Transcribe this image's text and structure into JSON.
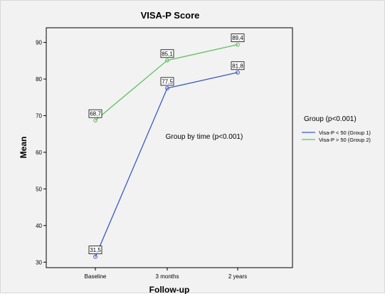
{
  "chart_data": {
    "type": "line",
    "title": "VISA-P Score",
    "xlabel": "Follow-up",
    "ylabel": "Mean",
    "categories": [
      "Baseline",
      "3 months",
      "2 years"
    ],
    "ylim": [
      28.5,
      94
    ],
    "yticks": [
      30,
      40,
      50,
      60,
      70,
      80,
      90
    ],
    "grid": false,
    "series": [
      {
        "name": "Visa-P < 50 (Group 1)",
        "color": "#3a5bc7",
        "values": [
          31.5,
          77.5,
          81.8
        ],
        "labels": [
          "31,5",
          "77,5",
          "81,8"
        ]
      },
      {
        "name": "Visa-P > 50 (Group 2)",
        "color": "#5cc15c",
        "values": [
          68.7,
          85.1,
          89.4
        ],
        "labels": [
          "68,7",
          "85,1",
          "89,4"
        ]
      }
    ],
    "annotation": "Group by time (p<0.001)",
    "legend": {
      "title": "Group (p<0.001)",
      "placement": "right"
    }
  }
}
